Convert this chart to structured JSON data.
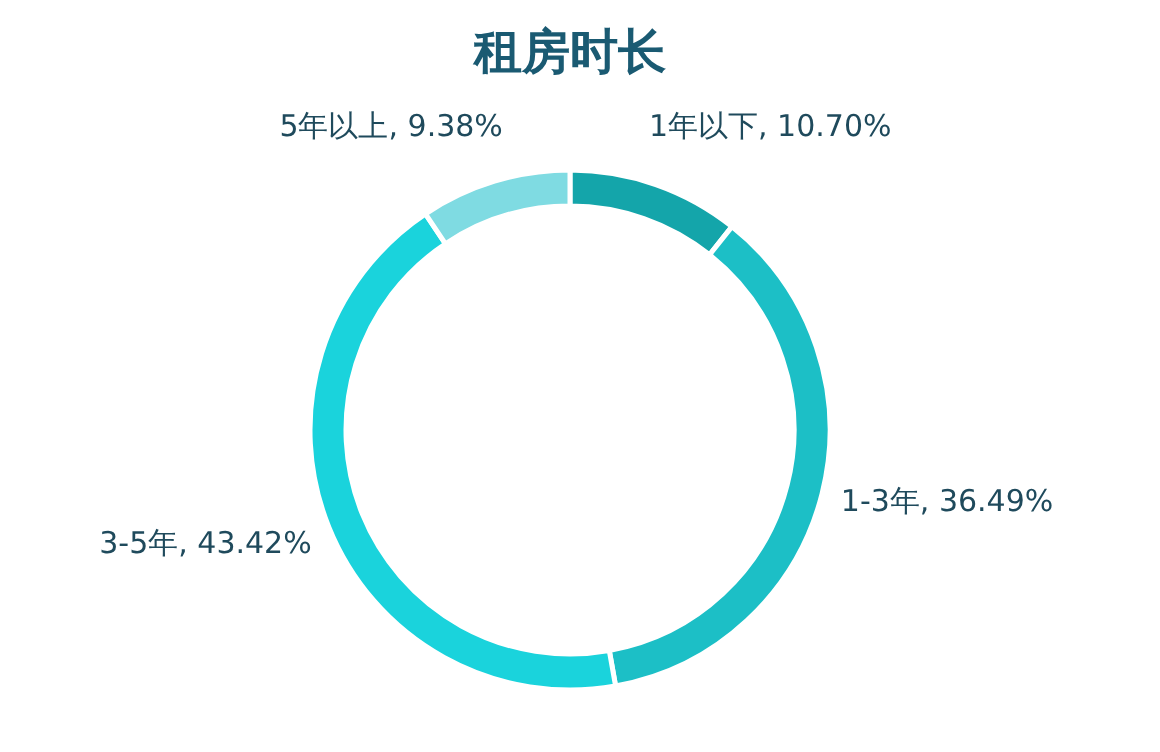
{
  "chart_data": {
    "type": "donut",
    "title": "租房时长",
    "categories": [
      "1年以下",
      "1-3年",
      "3-5年",
      "5年以上"
    ],
    "values": [
      10.7,
      36.49,
      43.42,
      9.38
    ],
    "colors": [
      "#14a5aa",
      "#1cbfc6",
      "#1ad3dc",
      "#7fdbe2"
    ],
    "value_labels": [
      ", 10.70%",
      ", 36.49%",
      ", 43.42%",
      ", 9.38%"
    ],
    "legend": false
  }
}
